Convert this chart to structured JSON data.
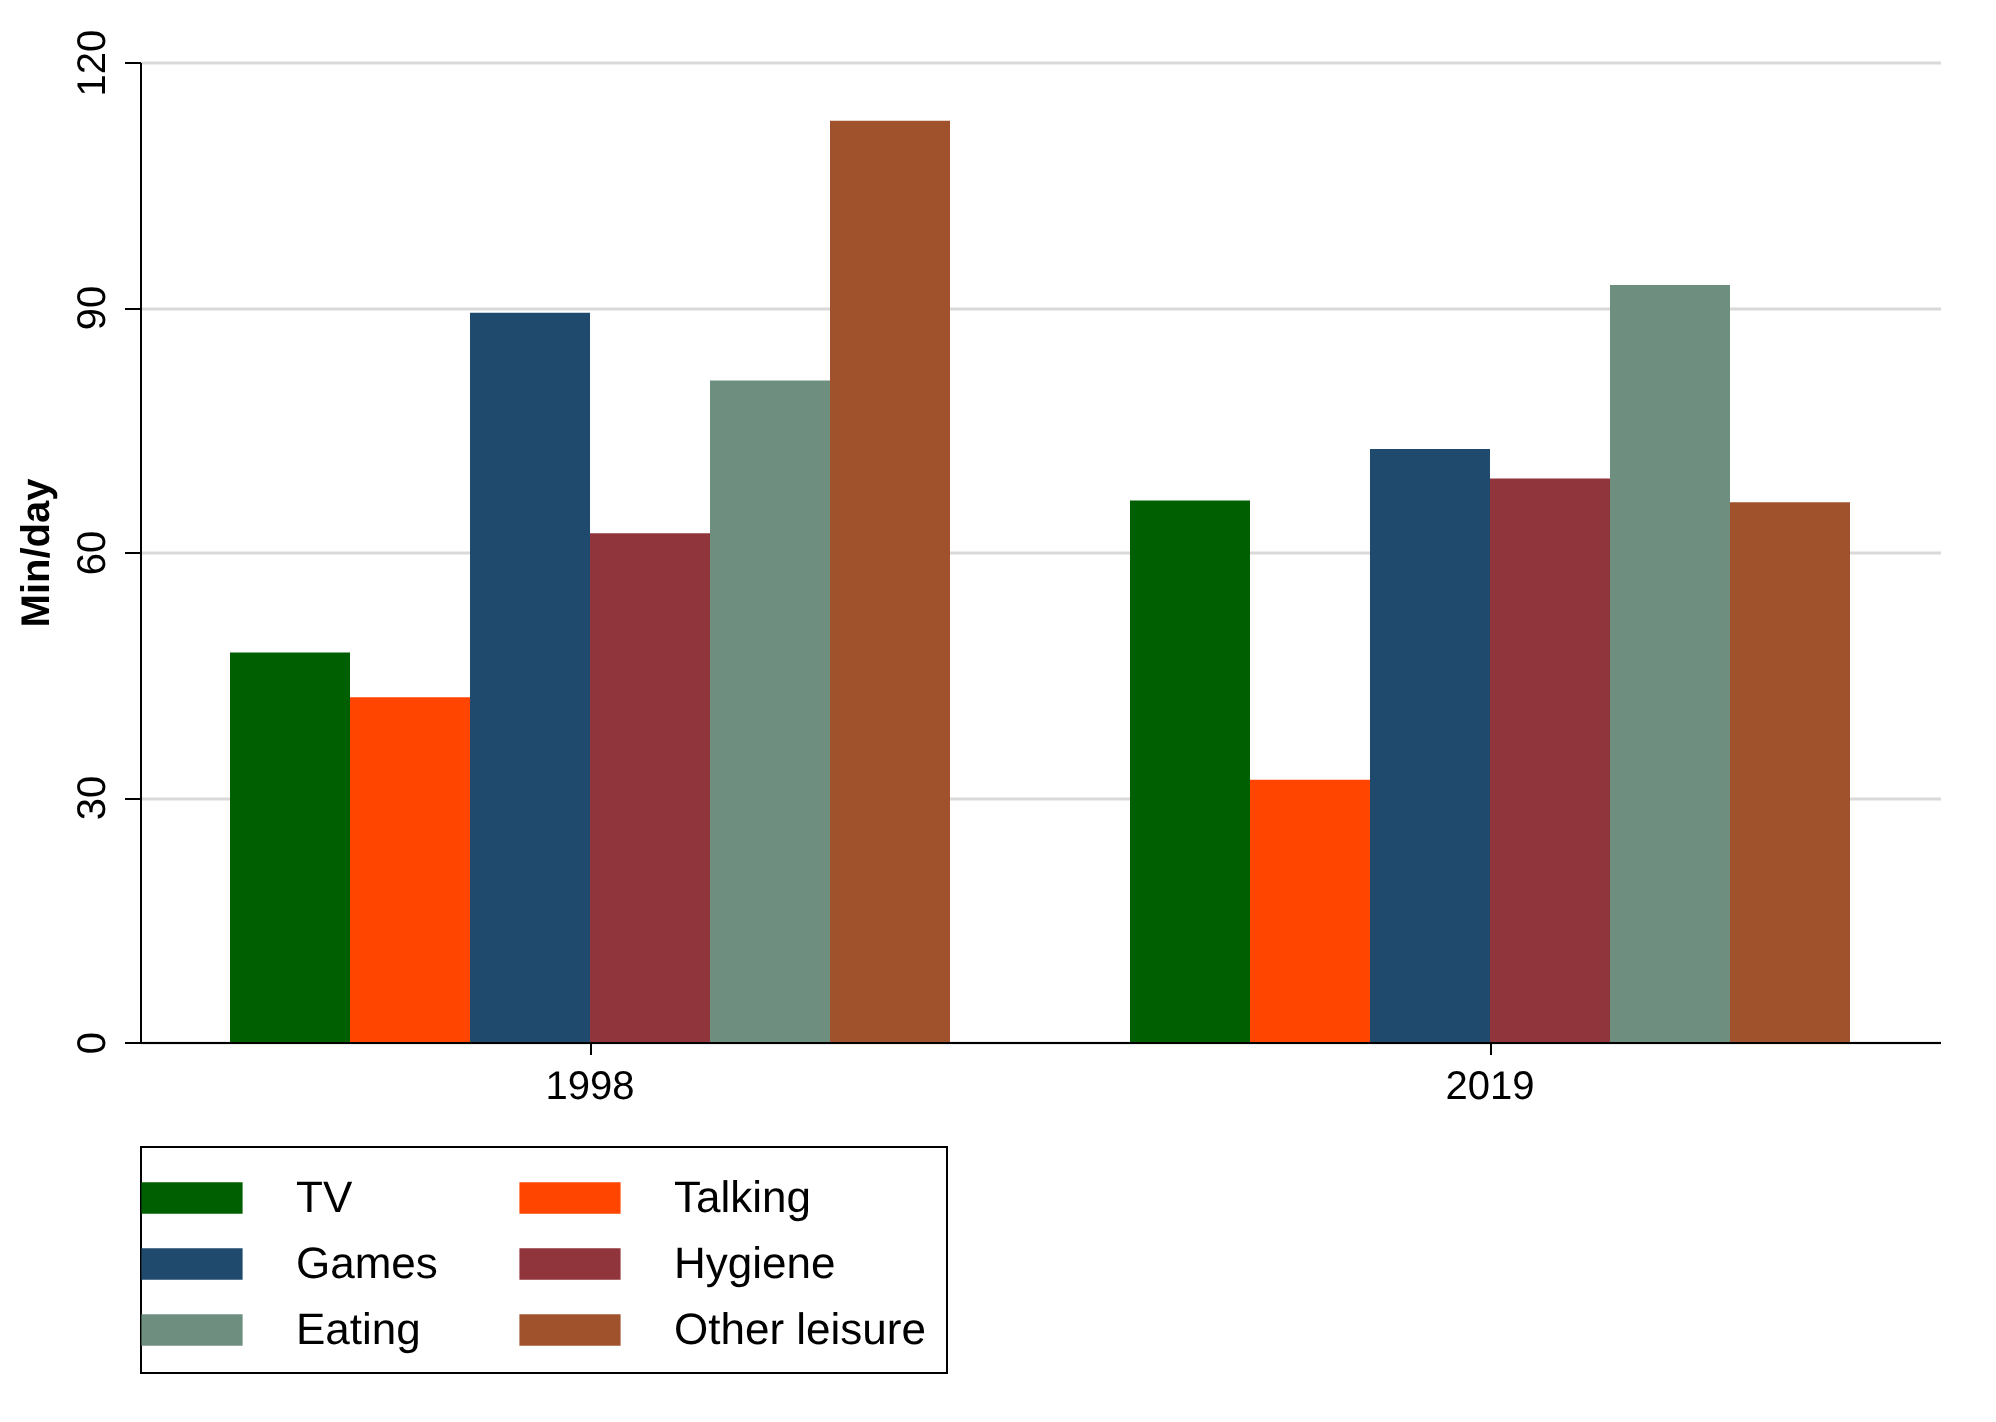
{
  "chart_data": {
    "type": "bar",
    "ylabel": "Min/day",
    "categories": [
      "1998",
      "2019"
    ],
    "series": [
      {
        "name": "TV",
        "color": "#005f00",
        "values": [
          47.7,
          66.3
        ]
      },
      {
        "name": "Talking",
        "color": "#ff4500",
        "values": [
          42.2,
          32.1
        ]
      },
      {
        "name": "Games",
        "color": "#1f4a6e",
        "values": [
          89.3,
          72.6
        ]
      },
      {
        "name": "Hygiene",
        "color": "#90353b",
        "values": [
          62.3,
          69
        ]
      },
      {
        "name": "Eating",
        "color": "#6e8f80",
        "values": [
          81,
          92.7
        ]
      },
      {
        "name": "Other leisure",
        "color": "#a0522d",
        "values": [
          112.8,
          66.1
        ]
      }
    ],
    "ylim": [
      0,
      120
    ],
    "yticks": [
      0,
      30,
      60,
      90,
      120
    ],
    "grid": "y",
    "legend": "bottom"
  }
}
